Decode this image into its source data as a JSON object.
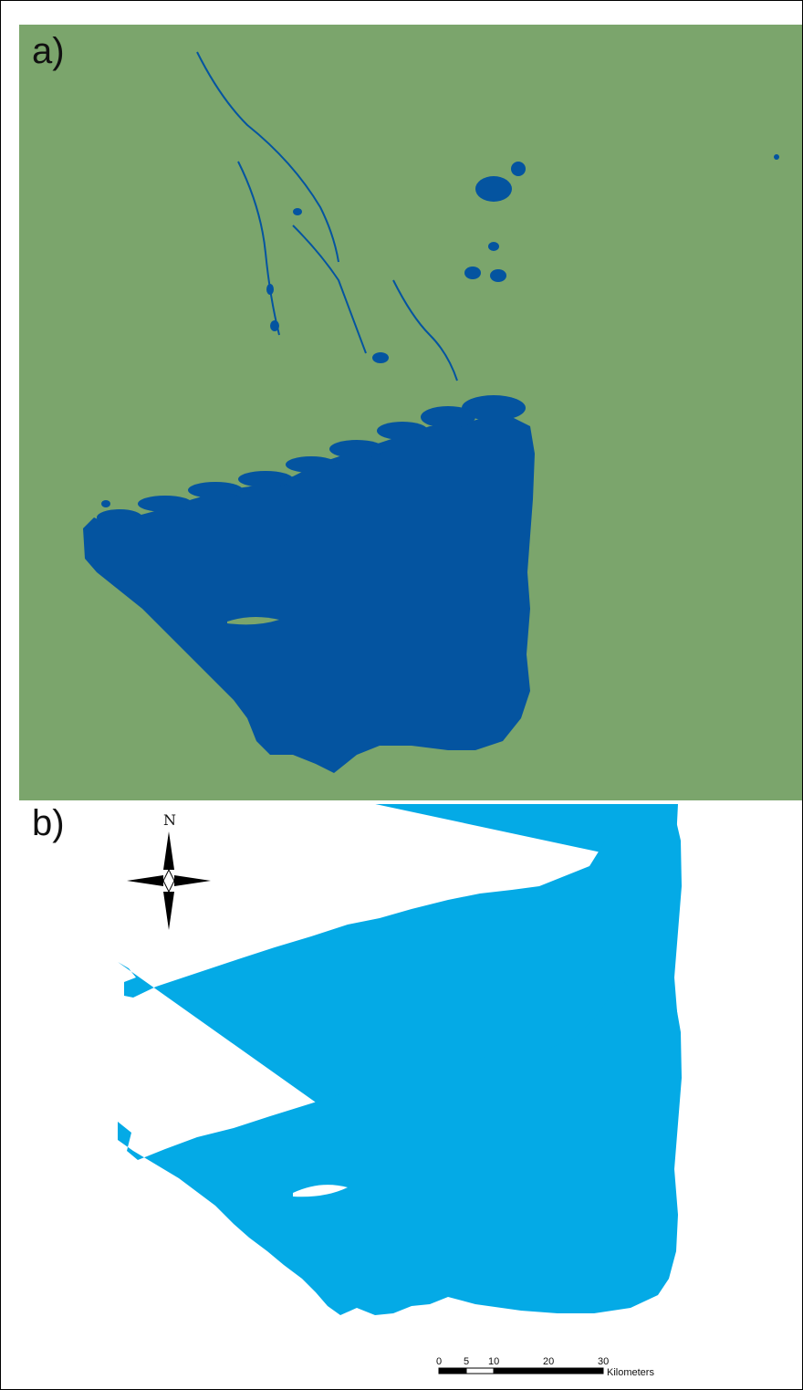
{
  "panels": [
    {
      "label": "a)",
      "land_color": "#7ba56c",
      "water_color": "#0454a0"
    },
    {
      "label": "b)",
      "background_color": "#ffffff",
      "water_color": "#04aae6"
    }
  ],
  "north_arrow": {
    "letter": "N"
  },
  "scale_bar": {
    "tick_labels": [
      "0",
      "5",
      "10",
      "20",
      "30"
    ],
    "unit": "Kilometers"
  }
}
